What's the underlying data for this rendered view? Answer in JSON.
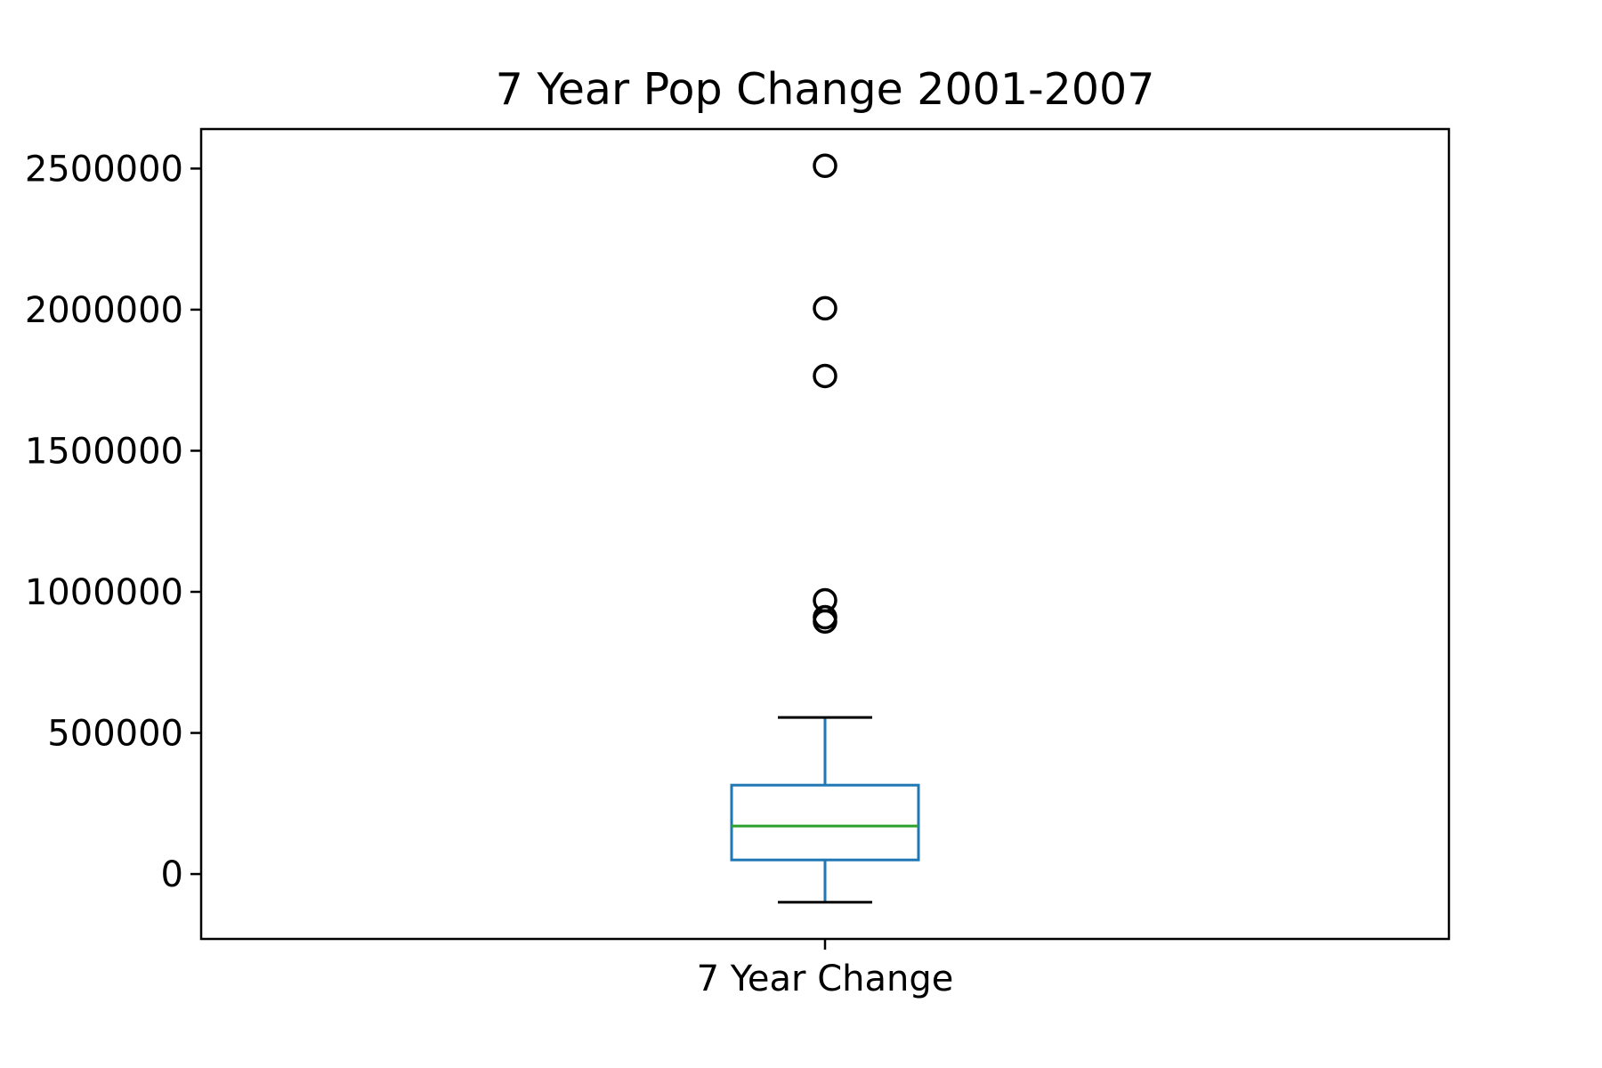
{
  "chart_data": {
    "type": "box",
    "title": "7 Year Pop Change 2001-2007",
    "xlabel": "",
    "ylabel": "",
    "categories": [
      "7 Year Change"
    ],
    "ylim": [
      -230000,
      2640000
    ],
    "yticks": [
      0,
      500000,
      1000000,
      1500000,
      2000000,
      2500000
    ],
    "ytick_labels": [
      "0",
      "500000",
      "1000000",
      "1500000",
      "2000000",
      "2500000"
    ],
    "grid": false,
    "legend": "none",
    "boxes": [
      {
        "category": "7 Year Change",
        "whisker_low": -100000,
        "q1": 50000,
        "median": 170000,
        "q3": 315000,
        "whisker_high": 555000,
        "outliers": [
          2510000,
          2005000,
          1765000,
          970000,
          910000,
          895000
        ]
      }
    ],
    "colors": {
      "box": "#1f77b4",
      "median": "#2ca02c",
      "whisker_cap": "#000000",
      "outlier": "#000000",
      "axes": "#000000"
    }
  }
}
